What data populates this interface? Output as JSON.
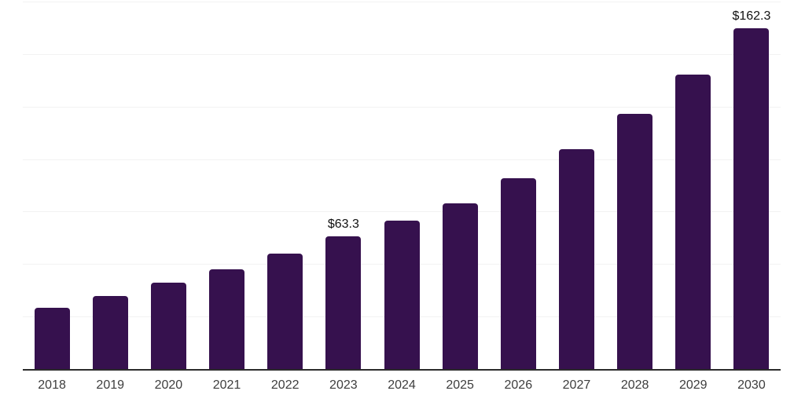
{
  "chart_data": {
    "type": "bar",
    "title": "",
    "xlabel": "",
    "ylabel": "",
    "categories": [
      "2018",
      "2019",
      "2020",
      "2021",
      "2022",
      "2023",
      "2024",
      "2025",
      "2026",
      "2027",
      "2028",
      "2029",
      "2030"
    ],
    "values": [
      29.1,
      34.6,
      41.2,
      47.4,
      55.0,
      63.3,
      70.8,
      78.8,
      91.0,
      104.8,
      121.5,
      140.3,
      162.3
    ],
    "data_labels": [
      {
        "category": "2023",
        "text": "$63.3"
      },
      {
        "category": "2030",
        "text": "$162.3"
      }
    ],
    "ylim": [
      0,
      175
    ],
    "grid_step": 25,
    "grid": "horizontal",
    "legend": "none",
    "y_axis_tick_labels": "none",
    "colors": {
      "bar": "#36114e",
      "axis_line": "#2b2b2b",
      "gridline": "#f2f2f2",
      "tick_label": "#3d3d3d",
      "data_label": "#111111",
      "background": "#ffffff"
    }
  }
}
